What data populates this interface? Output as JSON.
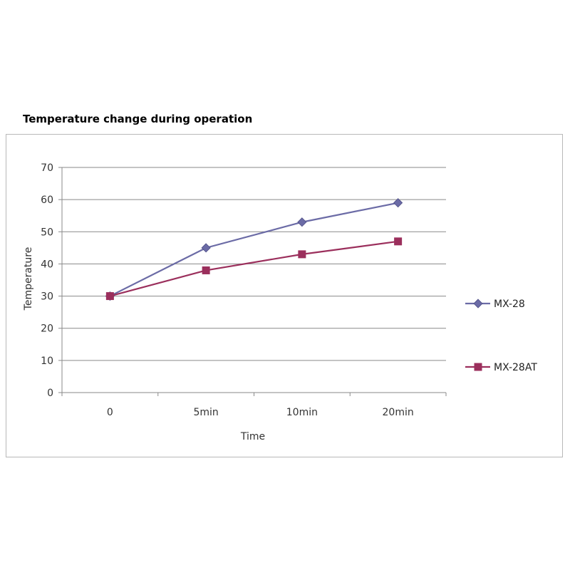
{
  "chart_data": {
    "type": "line",
    "title": "Temperature change during operation",
    "xlabel": "Time",
    "ylabel": "Temperature",
    "categories": [
      "0",
      "5min",
      "10min",
      "20min"
    ],
    "ylim": [
      0,
      70
    ],
    "yticks": [
      0,
      10,
      20,
      30,
      40,
      50,
      60,
      70
    ],
    "grid": true,
    "legend_position": "right",
    "series": [
      {
        "name": "MX-28",
        "values": [
          30,
          45,
          53,
          59
        ],
        "color": "#6b6ba6",
        "marker": "diamond"
      },
      {
        "name": "MX-28AT",
        "values": [
          30,
          38,
          43,
          47
        ],
        "color": "#9b2f5c",
        "marker": "square"
      }
    ]
  }
}
